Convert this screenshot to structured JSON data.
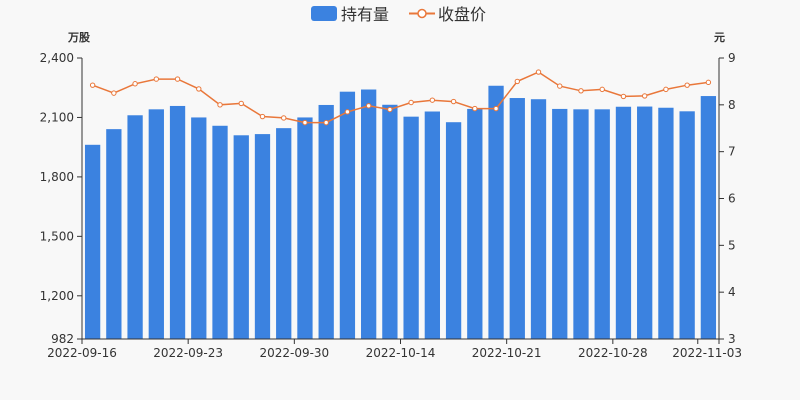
{
  "chart_data": {
    "type": "bar",
    "legend": {
      "position": "top-center"
    },
    "y_left": {
      "unit": "万股",
      "ylim": [
        982,
        2400
      ],
      "ticks": [
        "982",
        "1,200",
        "1,500",
        "1,800",
        "2,100",
        "2,400"
      ],
      "tick_values": [
        982,
        1200,
        1500,
        1800,
        2100,
        2400
      ]
    },
    "y_right": {
      "unit": "元",
      "ylim": [
        3,
        9
      ],
      "ticks": [
        "3",
        "4",
        "5",
        "6",
        "7",
        "8",
        "9"
      ],
      "tick_values": [
        3,
        4,
        5,
        6,
        7,
        8,
        9
      ]
    },
    "x_tick_labels": [
      "2022-09-16",
      "2022-09-23",
      "2022-09-30",
      "2022-10-14",
      "2022-10-21",
      "2022-10-28",
      "2022-11-03"
    ],
    "x_tick_indices": [
      0,
      5,
      10,
      15,
      20,
      25,
      29
    ],
    "colors": {
      "bar": "#3b82e0",
      "line": "#e9773a",
      "axis": "#333333"
    },
    "series": [
      {
        "name": "持有量",
        "type": "bar",
        "axis": "left",
        "values": [
          1962,
          2041,
          2111,
          2141,
          2158,
          2100,
          2058,
          2010,
          2016,
          2046,
          2100,
          2163,
          2230,
          2241,
          2164,
          2104,
          2130,
          2076,
          2143,
          2260,
          2198,
          2192,
          2143,
          2141,
          2141,
          2154,
          2155,
          2149,
          2131,
          2208
        ]
      },
      {
        "name": "收盘价",
        "type": "line",
        "axis": "right",
        "values": [
          8.42,
          8.25,
          8.45,
          8.55,
          8.55,
          8.34,
          8.0,
          8.03,
          7.75,
          7.72,
          7.62,
          7.62,
          7.85,
          7.98,
          7.9,
          8.05,
          8.1,
          8.07,
          7.92,
          7.92,
          8.5,
          8.7,
          8.4,
          8.3,
          8.33,
          8.18,
          8.19,
          8.33,
          8.42,
          8.48
        ]
      }
    ]
  }
}
